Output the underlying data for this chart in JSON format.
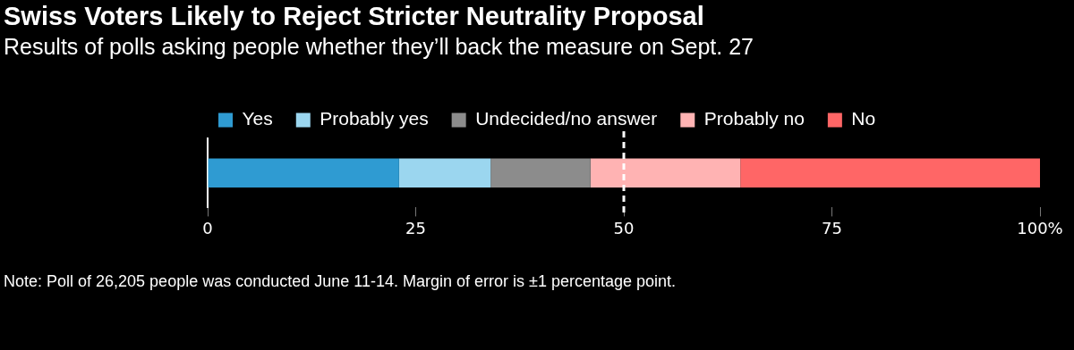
{
  "chart_data": {
    "type": "bar",
    "orientation": "horizontal",
    "stacked": true,
    "title": "Swiss Voters Likely to Reject Stricter Neutrality Proposal",
    "subtitle": "Results of polls asking people whether they’ll back the measure on Sept. 27",
    "categories": [
      null
    ],
    "series": [
      {
        "name": "Yes",
        "color": "#2f9bd2",
        "values": [
          23
        ]
      },
      {
        "name": "Probably yes",
        "color": "#9bd6ef",
        "values": [
          11
        ]
      },
      {
        "name": "Undecided/no answer",
        "color": "#8c8c8c",
        "values": [
          12
        ]
      },
      {
        "name": "Probably no",
        "color": "#ffb3b3",
        "values": [
          18
        ]
      },
      {
        "name": "No",
        "color": "#ff6666",
        "values": [
          36
        ]
      }
    ],
    "xlim": [
      0,
      100
    ],
    "xticks": [
      0,
      25,
      50,
      75,
      {
        "value": 100,
        "label": "100%"
      }
    ],
    "ref_lines": [
      {
        "axis": "x",
        "value": 50,
        "color": "#ffffff",
        "line_style": "dashed"
      }
    ],
    "grid": false,
    "legend": "top left",
    "annotations": [
      "Note: Poll of 26,205 people was conducted June 11-14. Margin of error is ±1 percentage point."
    ]
  }
}
